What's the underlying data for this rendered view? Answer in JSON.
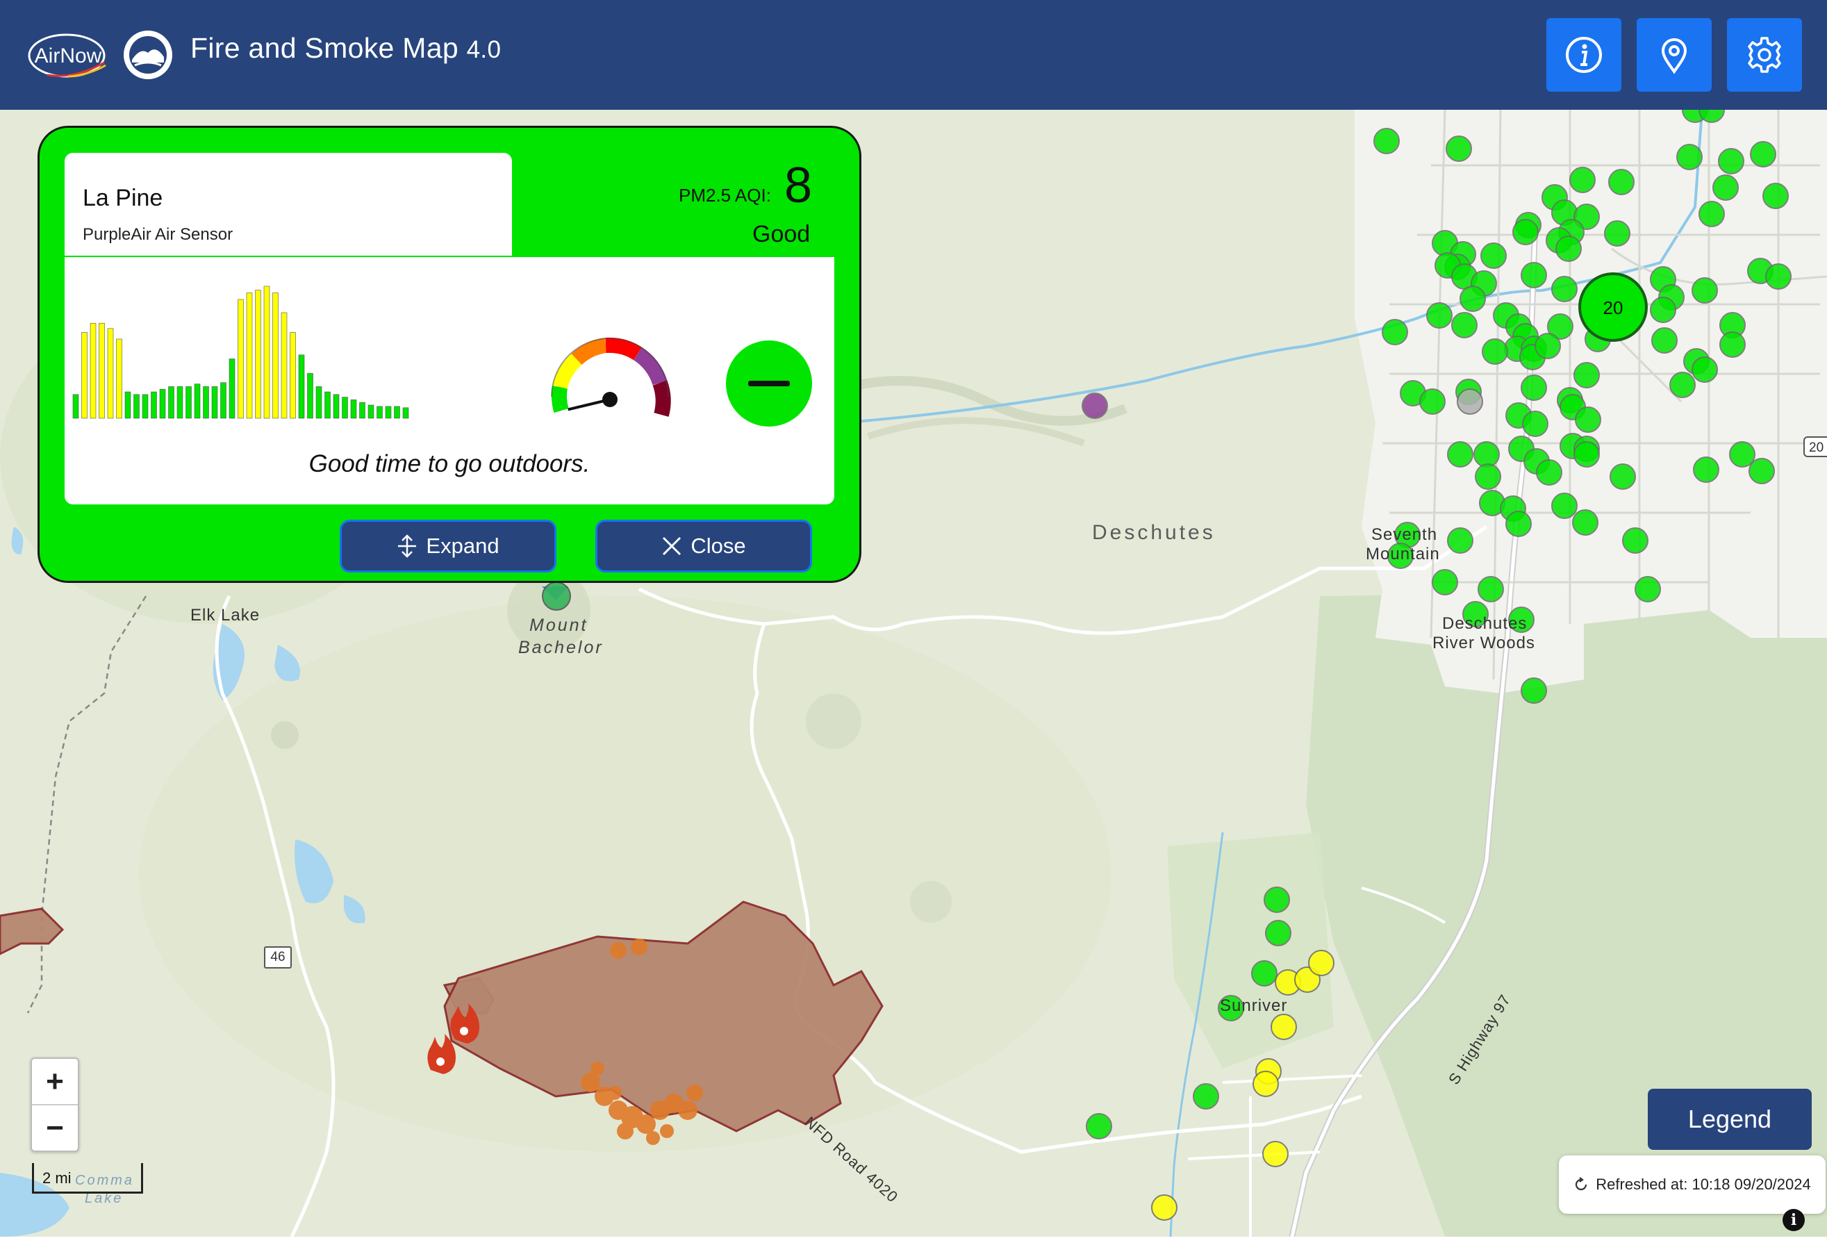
{
  "header": {
    "logo_text": "AirNow",
    "title": "Fire and Smoke Map",
    "version": "4.0",
    "buttons": [
      {
        "name": "info",
        "icon": "info-icon"
      },
      {
        "name": "location",
        "icon": "location-pin-icon"
      },
      {
        "name": "settings",
        "icon": "gear-icon"
      }
    ]
  },
  "popup": {
    "site_name": "La Pine",
    "site_type": "PurpleAir Air Sensor",
    "pollutant_label": "PM2.5 AQI:",
    "aqi_value": "8",
    "category": "Good",
    "message": "Good time to go outdoors.",
    "trend_icon": "steady-trend-icon",
    "expand_label": "Expand",
    "close_label": "Close",
    "history_bar_levels": [
      0.18,
      0.65,
      0.72,
      0.72,
      0.68,
      0.6,
      0.2,
      0.18,
      0.18,
      0.2,
      0.22,
      0.24,
      0.24,
      0.24,
      0.26,
      0.24,
      0.24,
      0.27,
      0.45,
      0.9,
      0.95,
      0.97,
      1.0,
      0.95,
      0.8,
      0.65,
      0.48,
      0.34,
      0.24,
      0.2,
      0.18,
      0.16,
      0.14,
      0.12,
      0.1,
      0.09,
      0.09,
      0.09,
      0.08
    ],
    "history_bar_colors": [
      "#00e400",
      "#ffff00",
      "#ffff00",
      "#ffff00",
      "#ffff00",
      "#ffff00",
      "#00e400",
      "#00e400",
      "#00e400",
      "#00e400",
      "#00e400",
      "#00e400",
      "#00e400",
      "#00e400",
      "#00e400",
      "#00e400",
      "#00e400",
      "#00e400",
      "#00e400",
      "#ffff00",
      "#ffff00",
      "#ffff00",
      "#ffff00",
      "#ffff00",
      "#ffff00",
      "#ffff00",
      "#00e400",
      "#00e400",
      "#00e400",
      "#00e400",
      "#00e400",
      "#00e400",
      "#00e400",
      "#00e400",
      "#00e400",
      "#00e400",
      "#00e400",
      "#00e400",
      "#00e400"
    ],
    "gauge_level": 0.03
  },
  "map": {
    "labels": {
      "deschutes": "Deschutes",
      "seventh_mountain_1": "Seventh",
      "seventh_mountain_2": "Mountain",
      "deschutes_river_woods_1": "Deschutes",
      "deschutes_river_woods_2": "River Woods",
      "elk_lake": "Elk Lake",
      "mount_bachelor_1": "Mount",
      "mount_bachelor_2": "Bachelor",
      "sunriver": "Sunriver",
      "nfd_road": "NFD Road 4020",
      "highway": "S Highway 97",
      "route_46": "46",
      "route_20": "20",
      "lake_1": "Comma",
      "lake_2": "Lake"
    },
    "cluster_count": "20",
    "colors": {
      "good": "#00e400",
      "moderate": "#ffff00",
      "unhealthy_sensitive": "#ff7e00",
      "very_unhealthy": "#8f3f97",
      "no_data": "#b0b0b0",
      "fire_perimeter": "#b5866f"
    }
  },
  "controls": {
    "zoom_in": "+",
    "zoom_out": "−",
    "scale": "2 mi",
    "legend_label": "Legend",
    "refresh_text": "Refreshed at: 10:18 09/20/2024",
    "info_corner": "i"
  }
}
